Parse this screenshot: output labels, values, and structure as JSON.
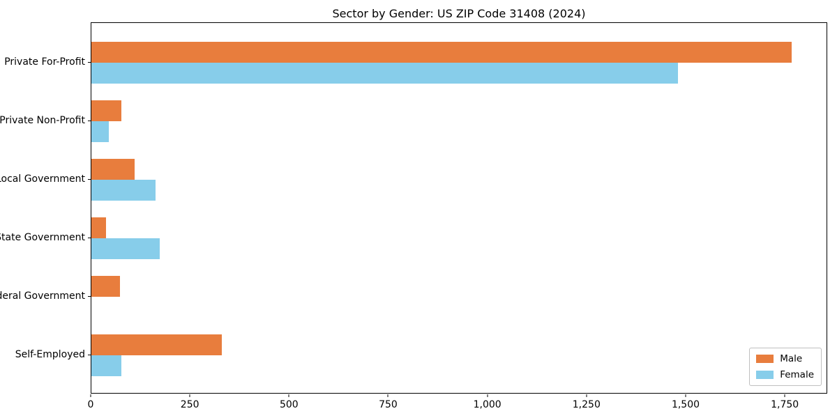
{
  "title": "Sector by Gender: US ZIP Code 31408 (2024)",
  "chart_data": {
    "type": "bar",
    "orientation": "horizontal",
    "title": "Sector by Gender: US ZIP Code 31408 (2024)",
    "categories": [
      "Private For-Profit",
      "Private Non-Profit",
      "Local Government",
      "State Government",
      "Federal Government",
      "Self-Employed"
    ],
    "series": [
      {
        "name": "Male",
        "color": "#e87d3d",
        "values": [
          1769,
          76,
          109,
          37,
          72,
          329
        ]
      },
      {
        "name": "Female",
        "color": "#87cdea",
        "values": [
          1482,
          44,
          162,
          172,
          0,
          76
        ]
      }
    ],
    "xlabel": "",
    "ylabel": "",
    "xlim": [
      0,
      1857
    ],
    "x_ticks": [
      0,
      250,
      500,
      750,
      1000,
      1250,
      1500,
      1750
    ],
    "x_tick_labels": [
      "0",
      "250",
      "500",
      "750",
      "1,000",
      "1,250",
      "1,500",
      "1,750"
    ],
    "grid": false,
    "legend_position": "lower right",
    "legend_entries": [
      "Male",
      "Female"
    ]
  }
}
